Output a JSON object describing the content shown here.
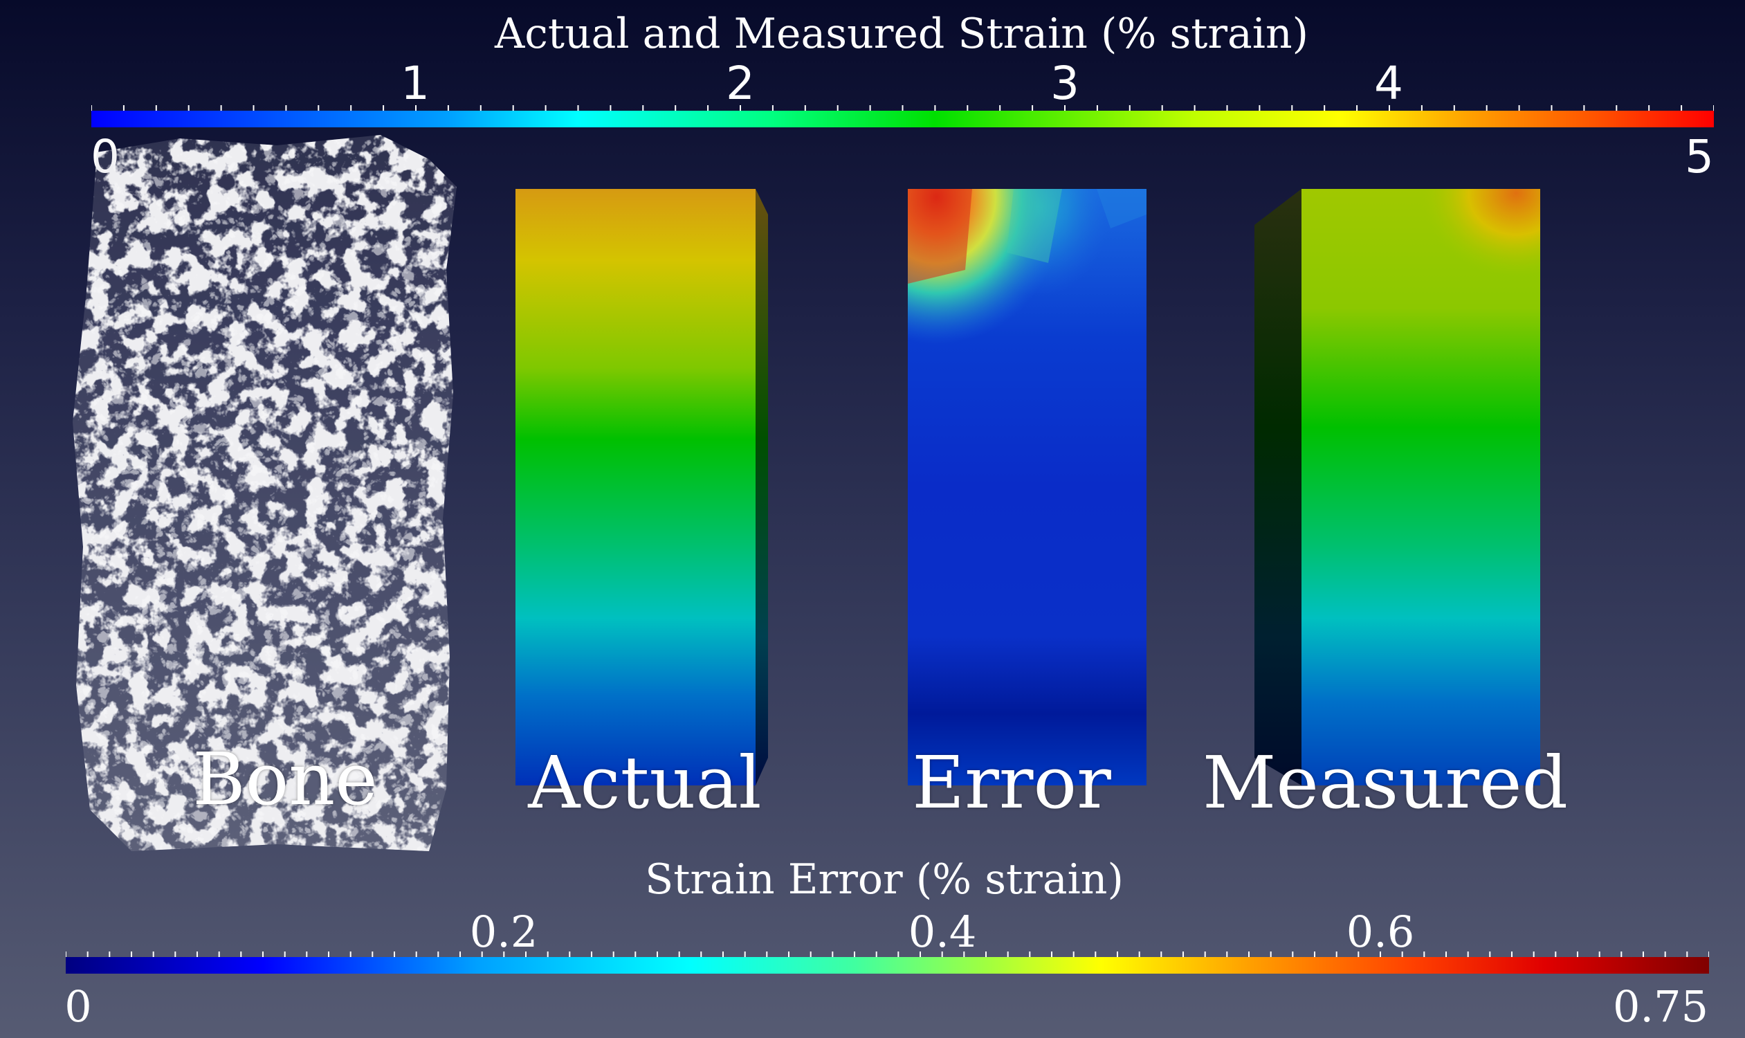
{
  "top_colorbar": {
    "title": "Actual and Measured Strain (% strain)",
    "min_label": "0",
    "max_label": "5",
    "tick_labels": [
      "1",
      "2",
      "3",
      "4"
    ],
    "range": [
      0,
      5
    ]
  },
  "bottom_colorbar": {
    "title": "Strain Error (% strain)",
    "min_label": "0",
    "max_label": "0.75",
    "tick_labels": [
      "0.2",
      "0.4",
      "0.6"
    ],
    "range": [
      0,
      0.75
    ]
  },
  "panels": {
    "bone": "Bone",
    "actual": "Actual",
    "error": "Error",
    "measured": "Measured"
  }
}
